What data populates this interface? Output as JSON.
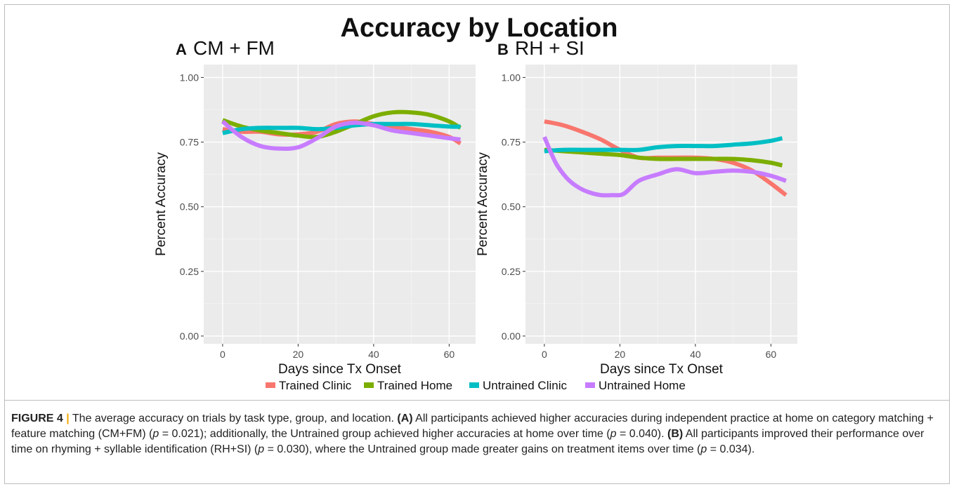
{
  "figure_title": "Accuracy by Location",
  "colors": {
    "trained_clinic": "#F8766D",
    "trained_home": "#7CAE00",
    "untrained_clinic": "#00BFC4",
    "untrained_home": "#C77CFF",
    "panel_bg": "#EBEBEB",
    "grid": "#FFFFFF"
  },
  "chart_data": [
    {
      "type": "line",
      "panel_letter": "A",
      "title": "CM + FM",
      "xlabel": "Days since Tx Onset",
      "ylabel": "Percent Accuracy",
      "xlim": [
        -5,
        67
      ],
      "ylim": [
        -0.03,
        1.05
      ],
      "xticks": [
        0,
        20,
        40,
        60
      ],
      "yticks": [
        0.0,
        0.25,
        0.5,
        0.75,
        1.0
      ],
      "ytick_labels": [
        "0.00",
        "0.25",
        "0.50",
        "0.75",
        "1.00"
      ],
      "grid": true,
      "series": [
        {
          "name": "Trained Clinic",
          "x": [
            0,
            5,
            10,
            15,
            20,
            25,
            30,
            35,
            40,
            45,
            50,
            55,
            60,
            63
          ],
          "y": [
            0.8,
            0.79,
            0.79,
            0.78,
            0.78,
            0.79,
            0.82,
            0.83,
            0.82,
            0.81,
            0.8,
            0.79,
            0.77,
            0.745
          ]
        },
        {
          "name": "Trained Home",
          "x": [
            0,
            5,
            10,
            15,
            20,
            25,
            30,
            35,
            40,
            45,
            50,
            55,
            60,
            63
          ],
          "y": [
            0.835,
            0.81,
            0.795,
            0.785,
            0.775,
            0.77,
            0.79,
            0.82,
            0.85,
            0.865,
            0.865,
            0.855,
            0.83,
            0.805
          ]
        },
        {
          "name": "Untrained Clinic",
          "x": [
            0,
            5,
            10,
            15,
            20,
            25,
            30,
            35,
            40,
            45,
            50,
            55,
            60,
            63
          ],
          "y": [
            0.785,
            0.8,
            0.805,
            0.805,
            0.805,
            0.8,
            0.805,
            0.815,
            0.82,
            0.82,
            0.82,
            0.815,
            0.81,
            0.81
          ]
        },
        {
          "name": "Untrained Home",
          "x": [
            0,
            5,
            10,
            15,
            20,
            25,
            30,
            35,
            40,
            45,
            50,
            55,
            60,
            63
          ],
          "y": [
            0.83,
            0.77,
            0.735,
            0.725,
            0.73,
            0.765,
            0.81,
            0.825,
            0.815,
            0.795,
            0.785,
            0.775,
            0.765,
            0.76
          ]
        }
      ]
    },
    {
      "type": "line",
      "panel_letter": "B",
      "title": "RH + SI",
      "xlabel": "Days since Tx Onset",
      "ylabel": "Percent Accuracy",
      "xlim": [
        -5,
        67
      ],
      "ylim": [
        -0.03,
        1.05
      ],
      "xticks": [
        0,
        20,
        40,
        60
      ],
      "yticks": [
        0.0,
        0.25,
        0.5,
        0.75,
        1.0
      ],
      "ytick_labels": [
        "0.00",
        "0.25",
        "0.50",
        "0.75",
        "1.00"
      ],
      "grid": true,
      "series": [
        {
          "name": "Trained Clinic",
          "x": [
            0,
            5,
            10,
            15,
            20,
            25,
            30,
            35,
            40,
            45,
            50,
            55,
            60,
            64
          ],
          "y": [
            0.83,
            0.815,
            0.79,
            0.76,
            0.72,
            0.69,
            0.69,
            0.69,
            0.69,
            0.685,
            0.67,
            0.64,
            0.59,
            0.545
          ]
        },
        {
          "name": "Trained Home",
          "x": [
            0,
            5,
            10,
            15,
            20,
            25,
            30,
            35,
            40,
            45,
            50,
            55,
            60,
            63
          ],
          "y": [
            0.72,
            0.715,
            0.71,
            0.705,
            0.7,
            0.69,
            0.685,
            0.685,
            0.685,
            0.685,
            0.685,
            0.68,
            0.67,
            0.66
          ]
        },
        {
          "name": "Untrained Clinic",
          "x": [
            0,
            5,
            10,
            15,
            20,
            25,
            30,
            35,
            40,
            45,
            50,
            55,
            60,
            63
          ],
          "y": [
            0.715,
            0.72,
            0.72,
            0.72,
            0.72,
            0.72,
            0.73,
            0.735,
            0.735,
            0.735,
            0.74,
            0.745,
            0.755,
            0.765
          ]
        },
        {
          "name": "Untrained Home",
          "x": [
            0,
            3,
            6,
            9,
            12,
            15,
            18,
            21,
            25,
            30,
            35,
            40,
            45,
            50,
            55,
            60,
            64
          ],
          "y": [
            0.77,
            0.67,
            0.61,
            0.575,
            0.555,
            0.545,
            0.545,
            0.55,
            0.6,
            0.625,
            0.645,
            0.63,
            0.635,
            0.64,
            0.635,
            0.62,
            0.6
          ]
        }
      ]
    }
  ],
  "legend": {
    "position": "bottom",
    "items": [
      "Trained Clinic",
      "Trained Home",
      "Untrained Clinic",
      "Untrained Home"
    ]
  },
  "caption": {
    "label": "FIGURE 4",
    "separator": "|",
    "intro": "The average accuracy on trials by task type, group, and location.",
    "a_tag": "(A)",
    "a_text1": "All participants achieved higher accuracies during independent practice at home on category matching + feature matching (CM+FM) (",
    "p1_var": "p",
    "p1_val": " = 0.021); additionally, the Untrained group achieved higher accuracies at home over time (",
    "p2_var": "p",
    "p2_val": " = 0.040).",
    "b_tag": "(B)",
    "b_text1": "All participants improved their performance over time on rhyming + syllable identification (RH+SI) (",
    "p3_var": "p",
    "p3_val": " = 0.030), where the Untrained group made greater gains on treatment items over time (",
    "p4_var": "p",
    "p4_val": " = 0.034)."
  }
}
